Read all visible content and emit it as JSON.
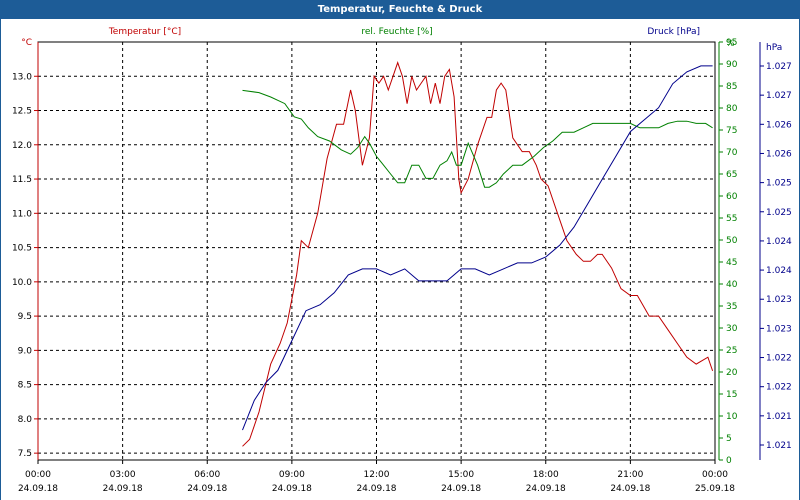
{
  "window": {
    "title": "Temperatur, Feuchte & Druck"
  },
  "colors": {
    "titlebar": "#1d5c97",
    "temperature": "#c00000",
    "humidity": "#008000",
    "pressure": "#00008b",
    "grid": "#000000",
    "text": "#000000"
  },
  "chart_data": {
    "type": "line",
    "title": "",
    "grid": true,
    "legend": "top (series names printed above each axis)",
    "x": {
      "range": [
        "24.09.18 00:00",
        "25.09.18 00:00"
      ],
      "tick_times": [
        "00:00",
        "03:00",
        "06:00",
        "09:00",
        "12:00",
        "15:00",
        "18:00",
        "21:00",
        "00:00"
      ],
      "tick_dates": [
        "24.09.18",
        "24.09.18",
        "24.09.18",
        "24.09.18",
        "24.09.18",
        "24.09.18",
        "24.09.18",
        "24.09.18",
        "25.09.18"
      ]
    },
    "axes": {
      "temperature": {
        "label": "Temperatur [°C]",
        "unit": "°C",
        "ylim": [
          7.4,
          13.5
        ],
        "ticks": [
          "7.5",
          "8.0",
          "8.5",
          "9.0",
          "9.5",
          "10.0",
          "10.5",
          "11.0",
          "11.5",
          "12.0",
          "12.5",
          "13.0"
        ]
      },
      "humidity": {
        "label": "rel. Feuchte [%]",
        "unit": "%",
        "ylim": [
          0,
          95
        ],
        "ticks": [
          "0",
          "5",
          "10",
          "15",
          "20",
          "25",
          "30",
          "35",
          "40",
          "45",
          "50",
          "55",
          "60",
          "65",
          "70",
          "75",
          "80",
          "85",
          "90",
          "95"
        ]
      },
      "pressure": {
        "label": "Druck [hPa]",
        "unit": "hPa",
        "ylim": [
          1.0205,
          1.0275
        ],
        "ticks": [
          "1.021",
          "1.021",
          "1.022",
          "1.022",
          "1.023",
          "1.023",
          "1.024",
          "1.024",
          "1.025",
          "1.025",
          "1.026",
          "1.026",
          "1.027",
          "1.027"
        ]
      }
    },
    "series": [
      {
        "name": "Temperatur [°C]",
        "axis": "temperature",
        "points": [
          [
            "24.09.18 07:15",
            7.6
          ],
          [
            "24.09.18 07:30",
            7.7
          ],
          [
            "24.09.18 07:50",
            8.1
          ],
          [
            "24.09.18 08:15",
            8.8
          ],
          [
            "24.09.18 08:35",
            9.1
          ],
          [
            "24.09.18 08:50",
            9.4
          ],
          [
            "24.09.18 09:10",
            10.1
          ],
          [
            "24.09.18 09:20",
            10.6
          ],
          [
            "24.09.18 09:35",
            10.5
          ],
          [
            "24.09.18 09:55",
            11.0
          ],
          [
            "24.09.18 10:15",
            11.8
          ],
          [
            "24.09.18 10:35",
            12.3
          ],
          [
            "24.09.18 10:50",
            12.3
          ],
          [
            "24.09.18 11:05",
            12.8
          ],
          [
            "24.09.18 11:15",
            12.5
          ],
          [
            "24.09.18 11:30",
            11.7
          ],
          [
            "24.09.18 11:45",
            12.1
          ],
          [
            "24.09.18 11:55",
            13.0
          ],
          [
            "24.09.18 12:05",
            12.9
          ],
          [
            "24.09.18 12:15",
            13.0
          ],
          [
            "24.09.18 12:25",
            12.8
          ],
          [
            "24.09.18 12:35",
            13.0
          ],
          [
            "24.09.18 12:45",
            13.2
          ],
          [
            "24.09.18 12:55",
            13.0
          ],
          [
            "24.09.18 13:05",
            12.6
          ],
          [
            "24.09.18 13:15",
            13.0
          ],
          [
            "24.09.18 13:25",
            12.8
          ],
          [
            "24.09.18 13:35",
            12.9
          ],
          [
            "24.09.18 13:45",
            13.0
          ],
          [
            "24.09.18 13:55",
            12.6
          ],
          [
            "24.09.18 14:05",
            12.9
          ],
          [
            "24.09.18 14:15",
            12.6
          ],
          [
            "24.09.18 14:25",
            13.0
          ],
          [
            "24.09.18 14:35",
            13.1
          ],
          [
            "24.09.18 14:45",
            12.7
          ],
          [
            "24.09.18 14:55",
            11.5
          ],
          [
            "24.09.18 15:00",
            11.3
          ],
          [
            "24.09.18 15:15",
            11.5
          ],
          [
            "24.09.18 15:35",
            12.0
          ],
          [
            "24.09.18 15:55",
            12.4
          ],
          [
            "24.09.18 16:05",
            12.4
          ],
          [
            "24.09.18 16:15",
            12.8
          ],
          [
            "24.09.18 16:25",
            12.9
          ],
          [
            "24.09.18 16:35",
            12.8
          ],
          [
            "24.09.18 16:50",
            12.1
          ],
          [
            "24.09.18 17:10",
            11.9
          ],
          [
            "24.09.18 17:25",
            11.9
          ],
          [
            "24.09.18 17:40",
            11.7
          ],
          [
            "24.09.18 17:50",
            11.5
          ],
          [
            "24.09.18 18:05",
            11.4
          ],
          [
            "24.09.18 18:25",
            11.0
          ],
          [
            "24.09.18 18:45",
            10.6
          ],
          [
            "24.09.18 19:05",
            10.4
          ],
          [
            "24.09.18 19:20",
            10.3
          ],
          [
            "24.09.18 19:35",
            10.3
          ],
          [
            "24.09.18 19:50",
            10.4
          ],
          [
            "24.09.18 20:00",
            10.4
          ],
          [
            "24.09.18 20:20",
            10.2
          ],
          [
            "24.09.18 20:40",
            9.9
          ],
          [
            "24.09.18 21:00",
            9.8
          ],
          [
            "24.09.18 21:15",
            9.8
          ],
          [
            "24.09.18 21:40",
            9.5
          ],
          [
            "24.09.18 22:00",
            9.5
          ],
          [
            "24.09.18 22:20",
            9.3
          ],
          [
            "24.09.18 22:40",
            9.1
          ],
          [
            "24.09.18 23:00",
            8.9
          ],
          [
            "24.09.18 23:20",
            8.8
          ],
          [
            "24.09.18 23:45",
            8.9
          ],
          [
            "24.09.18 23:55",
            8.7
          ]
        ]
      },
      {
        "name": "rel. Feuchte [%]",
        "axis": "humidity",
        "points": [
          [
            "24.09.18 07:15",
            84
          ],
          [
            "24.09.18 07:50",
            83.5
          ],
          [
            "24.09.18 08:15",
            82.5
          ],
          [
            "24.09.18 08:45",
            81
          ],
          [
            "24.09.18 09:05",
            78
          ],
          [
            "24.09.18 09:20",
            77.5
          ],
          [
            "24.09.18 09:35",
            75.5
          ],
          [
            "24.09.18 09:55",
            73.5
          ],
          [
            "24.09.18 10:20",
            72.5
          ],
          [
            "24.09.18 10:45",
            70.5
          ],
          [
            "24.09.18 11:05",
            69.5
          ],
          [
            "24.09.18 11:20",
            71
          ],
          [
            "24.09.18 11:35",
            73.5
          ],
          [
            "24.09.18 11:45",
            72
          ],
          [
            "24.09.18 12:00",
            69
          ],
          [
            "24.09.18 12:15",
            67
          ],
          [
            "24.09.18 12:30",
            65
          ],
          [
            "24.09.18 12:45",
            63
          ],
          [
            "24.09.18 13:00",
            63
          ],
          [
            "24.09.18 13:15",
            67
          ],
          [
            "24.09.18 13:30",
            67
          ],
          [
            "24.09.18 13:45",
            64
          ],
          [
            "24.09.18 14:00",
            64
          ],
          [
            "24.09.18 14:15",
            67
          ],
          [
            "24.09.18 14:30",
            68
          ],
          [
            "24.09.18 14:40",
            70
          ],
          [
            "24.09.18 14:50",
            67
          ],
          [
            "24.09.18 15:00",
            67
          ],
          [
            "24.09.18 15:15",
            72
          ],
          [
            "24.09.18 15:35",
            67
          ],
          [
            "24.09.18 15:50",
            62
          ],
          [
            "24.09.18 16:00",
            62
          ],
          [
            "24.09.18 16:15",
            63
          ],
          [
            "24.09.18 16:30",
            65
          ],
          [
            "24.09.18 16:50",
            67
          ],
          [
            "24.09.18 17:10",
            67
          ],
          [
            "24.09.18 17:35",
            69
          ],
          [
            "24.09.18 17:55",
            71
          ],
          [
            "24.09.18 18:15",
            72.5
          ],
          [
            "24.09.18 18:35",
            74.5
          ],
          [
            "24.09.18 19:00",
            74.5
          ],
          [
            "24.09.18 19:20",
            75.5
          ],
          [
            "24.09.18 19:40",
            76.5
          ],
          [
            "24.09.18 20:00",
            76.5
          ],
          [
            "24.09.18 20:20",
            76.5
          ],
          [
            "24.09.18 20:40",
            76.5
          ],
          [
            "24.09.18 21:00",
            76.5
          ],
          [
            "24.09.18 21:20",
            75.5
          ],
          [
            "24.09.18 21:40",
            75.5
          ],
          [
            "24.09.18 22:00",
            75.5
          ],
          [
            "24.09.18 22:20",
            76.5
          ],
          [
            "24.09.18 22:40",
            77
          ],
          [
            "24.09.18 23:00",
            77
          ],
          [
            "24.09.18 23:20",
            76.5
          ],
          [
            "24.09.18 23:40",
            76.5
          ],
          [
            "24.09.18 23:55",
            75.5
          ]
        ]
      },
      {
        "name": "Druck [hPa]",
        "axis": "pressure",
        "points": [
          [
            "24.09.18 07:15",
            1.021
          ],
          [
            "24.09.18 07:40",
            1.0215
          ],
          [
            "24.09.18 08:05",
            1.0218
          ],
          [
            "24.09.18 08:30",
            1.022
          ],
          [
            "24.09.18 09:00",
            1.0225
          ],
          [
            "24.09.18 09:30",
            1.023
          ],
          [
            "24.09.18 10:00",
            1.0231
          ],
          [
            "24.09.18 10:30",
            1.0233
          ],
          [
            "24.09.18 11:00",
            1.0236
          ],
          [
            "24.09.18 11:30",
            1.0237
          ],
          [
            "24.09.18 12:00",
            1.0237
          ],
          [
            "24.09.18 12:30",
            1.0236
          ],
          [
            "24.09.18 13:00",
            1.0237
          ],
          [
            "24.09.18 13:30",
            1.0235
          ],
          [
            "24.09.18 14:00",
            1.0235
          ],
          [
            "24.09.18 14:30",
            1.0235
          ],
          [
            "24.09.18 15:00",
            1.0237
          ],
          [
            "24.09.18 15:30",
            1.0237
          ],
          [
            "24.09.18 16:00",
            1.0236
          ],
          [
            "24.09.18 16:30",
            1.0237
          ],
          [
            "24.09.18 17:00",
            1.0238
          ],
          [
            "24.09.18 17:30",
            1.0238
          ],
          [
            "24.09.18 18:00",
            1.0239
          ],
          [
            "24.09.18 18:30",
            1.0241
          ],
          [
            "24.09.18 19:00",
            1.0244
          ],
          [
            "24.09.18 19:30",
            1.0248
          ],
          [
            "24.09.18 20:00",
            1.0252
          ],
          [
            "24.09.18 20:30",
            1.0256
          ],
          [
            "24.09.18 21:00",
            1.026
          ],
          [
            "24.09.18 21:30",
            1.0262
          ],
          [
            "24.09.18 22:00",
            1.0264
          ],
          [
            "24.09.18 22:30",
            1.0268
          ],
          [
            "24.09.18 23:00",
            1.027
          ],
          [
            "24.09.18 23:30",
            1.0271
          ],
          [
            "24.09.18 23:55",
            1.0271
          ]
        ]
      }
    ]
  }
}
